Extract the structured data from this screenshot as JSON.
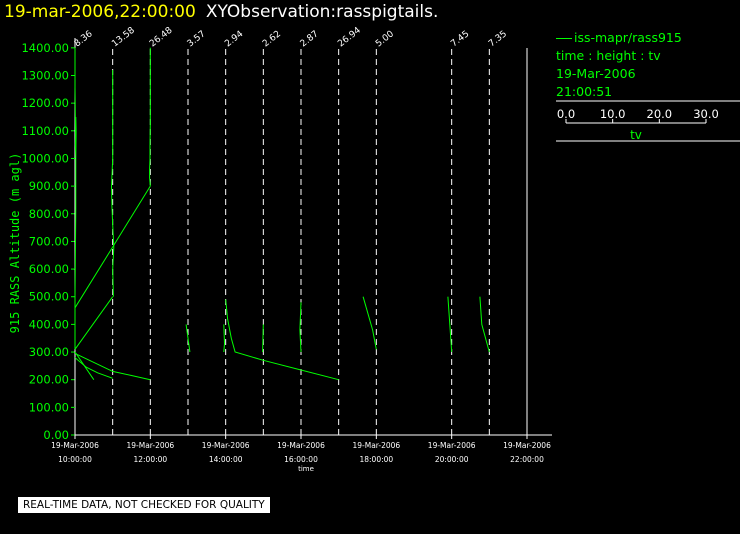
{
  "header": {
    "datetime": "19-mar-2006,22:00:00",
    "observation": "XYObservation:rasspigtails."
  },
  "legend": {
    "series_label": "iss-mapr/rass915",
    "axes_desc": "time : height : tv",
    "date": "19-Mar-2006",
    "time": "21:00:51",
    "scale_ticks": [
      "0.0",
      "10.0",
      "20.0",
      "30.0"
    ],
    "scale_values": [
      0,
      10,
      20,
      30
    ],
    "scale_label": "tv"
  },
  "disclaimer": "REAL-TIME DATA, NOT CHECKED FOR QUALITY",
  "colors": {
    "trace": "#00ff00",
    "axis": "#ffffff",
    "background": "#000000",
    "title": "#ffff00"
  },
  "chart_data": {
    "type": "line",
    "ylabel": "915 RASS Altitude (m agl)",
    "xlabel": "time",
    "xlim": [
      9.5,
      22.5
    ],
    "ylim": [
      0,
      1450
    ],
    "yticks": [
      0,
      100,
      200,
      300,
      400,
      500,
      600,
      700,
      800,
      900,
      1000,
      1100,
      1200,
      1300,
      1400
    ],
    "ytick_labels": [
      "0.00",
      "100.00",
      "200.00",
      "300.00",
      "400.00",
      "500.00",
      "600.00",
      "700.00",
      "800.00",
      "900.00",
      "1000.00",
      "1100.00",
      "1200.00",
      "1300.00",
      "1400.00"
    ],
    "xticks": [
      {
        "hour": 10,
        "date": "19-Mar-2006",
        "time": "10:00:00"
      },
      {
        "hour": 12,
        "date": "19-Mar-2006",
        "time": "12:00:00"
      },
      {
        "hour": 14,
        "date": "19-Mar-2006",
        "time": "14:00:00"
      },
      {
        "hour": 16,
        "date": "19-Mar-2006",
        "time": "16:00:00"
      },
      {
        "hour": 18,
        "date": "19-Mar-2006",
        "time": "18:00:00"
      },
      {
        "hour": 20,
        "date": "19-Mar-2006",
        "time": "20:00:00"
      },
      {
        "hour": 22,
        "date": "19-Mar-2006",
        "time": "22:00:00"
      }
    ],
    "profiles": [
      {
        "hour": 10.0,
        "offset_label": "8.36"
      },
      {
        "hour": 11.0,
        "offset_label": "13.58"
      },
      {
        "hour": 12.0,
        "offset_label": "26.48"
      },
      {
        "hour": 13.0,
        "offset_label": "3.57"
      },
      {
        "hour": 14.0,
        "offset_label": "2.94"
      },
      {
        "hour": 15.0,
        "offset_label": "2.62"
      },
      {
        "hour": 16.0,
        "offset_label": "2.87"
      },
      {
        "hour": 17.0,
        "offset_label": "26.94"
      },
      {
        "hour": 18.0,
        "offset_label": "5.00"
      },
      {
        "hour": 20.0,
        "offset_label": "7.45"
      },
      {
        "hour": 21.0,
        "offset_label": "7.35"
      }
    ],
    "traces": [
      [
        [
          10.0,
          310
        ],
        [
          10.0,
          370
        ],
        [
          10.0,
          460
        ],
        [
          10.0,
          500
        ],
        [
          10.02,
          820
        ],
        [
          10.02,
          1000
        ],
        [
          10.01,
          1050
        ],
        [
          10.02,
          1150
        ],
        [
          10.03,
          1100
        ],
        [
          10.02,
          1000
        ],
        [
          10.0,
          1260
        ],
        [
          10.0,
          1400
        ]
      ],
      [
        [
          11.02,
          500
        ],
        [
          11.0,
          600
        ],
        [
          11.03,
          680
        ],
        [
          11.0,
          760
        ],
        [
          10.98,
          830
        ],
        [
          10.97,
          900
        ],
        [
          11.0,
          1000
        ],
        [
          11.0,
          1080
        ],
        [
          11.0,
          1180
        ],
        [
          11.0,
          1320
        ]
      ],
      [
        [
          12.0,
          900
        ],
        [
          11.98,
          930
        ],
        [
          11.98,
          960
        ],
        [
          11.99,
          1000
        ],
        [
          11.99,
          1050
        ],
        [
          12.0,
          1120
        ],
        [
          12.0,
          1200
        ],
        [
          12.0,
          1300
        ],
        [
          12.0,
          1400
        ]
      ],
      [
        [
          10.0,
          280
        ],
        [
          10.3,
          245
        ],
        [
          10.6,
          225
        ],
        [
          11.0,
          205
        ]
      ],
      [
        [
          10.0,
          295
        ],
        [
          11.0,
          230
        ],
        [
          11.5,
          215
        ],
        [
          12.0,
          200
        ]
      ],
      [
        [
          10.0,
          460
        ],
        [
          11.0,
          680
        ],
        [
          12.0,
          900
        ]
      ],
      [
        [
          10.0,
          310
        ],
        [
          11.0,
          500
        ]
      ],
      [
        [
          10.0,
          300
        ],
        [
          10.5,
          200
        ]
      ],
      [
        [
          12.95,
          400
        ],
        [
          13.05,
          300
        ]
      ],
      [
        [
          13.95,
          400
        ],
        [
          13.97,
          330
        ],
        [
          13.95,
          300
        ]
      ],
      [
        [
          14.0,
          490
        ],
        [
          14.05,
          420
        ],
        [
          14.15,
          350
        ],
        [
          14.25,
          300
        ],
        [
          15.0,
          270
        ],
        [
          16.0,
          235
        ],
        [
          17.0,
          200
        ]
      ],
      [
        [
          15.0,
          400
        ],
        [
          14.98,
          300
        ]
      ],
      [
        [
          16.0,
          480
        ],
        [
          15.97,
          380
        ],
        [
          16.0,
          300
        ]
      ],
      [
        [
          17.65,
          500
        ],
        [
          17.9,
          380
        ],
        [
          18.0,
          310
        ]
      ],
      [
        [
          19.9,
          500
        ],
        [
          19.95,
          400
        ],
        [
          20.0,
          300
        ]
      ],
      [
        [
          20.75,
          500
        ],
        [
          20.8,
          400
        ],
        [
          21.0,
          300
        ]
      ]
    ]
  }
}
